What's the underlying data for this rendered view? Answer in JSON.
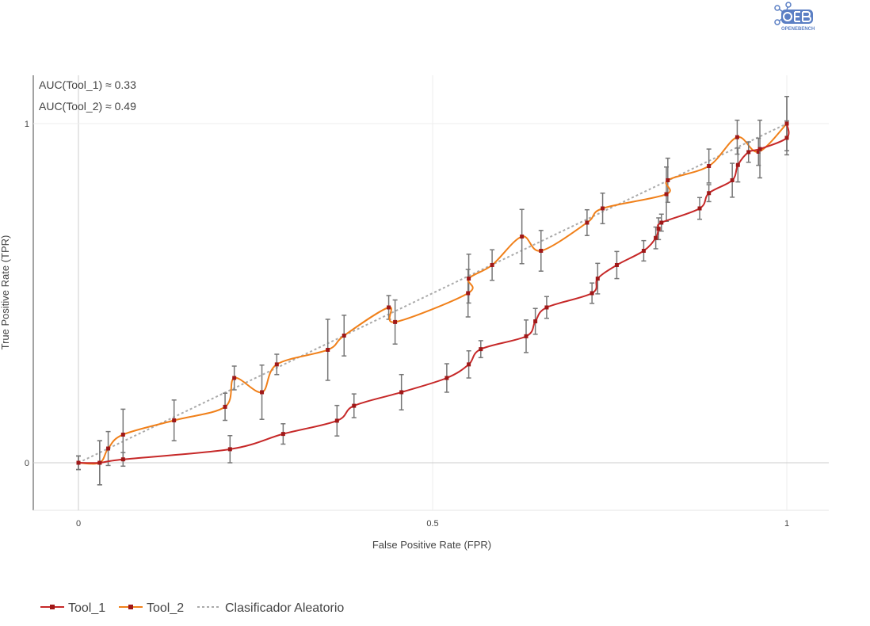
{
  "logo": {
    "label": "OPENEBENCH"
  },
  "chart_data": {
    "type": "line",
    "xlabel": "False Positive Rate (FPR)",
    "ylabel": "True Positive Rate (TPR)",
    "xlim": [
      -0.065,
      1.06
    ],
    "ylim": [
      -0.14,
      1.14
    ],
    "xticks": [
      {
        "v": 0,
        "label": "0"
      },
      {
        "v": 0.5,
        "label": "0.5"
      },
      {
        "v": 1,
        "label": "1"
      }
    ],
    "yticks": [
      {
        "v": 0,
        "label": "0"
      },
      {
        "v": 1,
        "label": "1"
      }
    ],
    "grid": true,
    "legend_position": "bottom",
    "annotations": [
      "AUC(Tool_1) ≈ 0.33",
      "AUC(Tool_2) ≈ 0.49"
    ],
    "series": [
      {
        "name": "Tool_1",
        "color": "#c62828",
        "x": [
          0,
          0.03,
          0.063,
          0.214,
          0.289,
          0.365,
          0.389,
          0.456,
          0.52,
          0.551,
          0.568,
          0.632,
          0.645,
          0.661,
          0.725,
          0.733,
          0.76,
          0.798,
          0.815,
          0.819,
          0.823,
          0.877,
          0.89,
          0.923,
          0.931,
          0.946,
          0.962,
          1,
          1
        ],
        "y": [
          0,
          0,
          0.01,
          0.04,
          0.085,
          0.124,
          0.168,
          0.208,
          0.25,
          0.29,
          0.335,
          0.373,
          0.417,
          0.458,
          0.5,
          0.543,
          0.583,
          0.625,
          0.663,
          0.69,
          0.708,
          0.75,
          0.795,
          0.833,
          0.878,
          0.916,
          0.925,
          0.958,
          1
        ],
        "err": [
          0.02,
          0.065,
          0.02,
          0.04,
          0.03,
          0.045,
          0.035,
          0.052,
          0.042,
          0.04,
          0.025,
          0.048,
          0.038,
          0.032,
          0.03,
          0.045,
          0.04,
          0.03,
          0.032,
          0.032,
          0.025,
          0.032,
          0.025,
          0.05,
          0.05,
          0.03,
          0.085,
          0.05,
          0.08
        ]
      },
      {
        "name": "Tool_2",
        "color": "#f0801a",
        "x": [
          0,
          0.03,
          0.042,
          0.063,
          0.135,
          0.207,
          0.22,
          0.259,
          0.28,
          0.352,
          0.375,
          0.438,
          0.447,
          0.55,
          0.551,
          0.584,
          0.626,
          0.653,
          0.718,
          0.74,
          0.83,
          0.832,
          0.89,
          0.93,
          0.96,
          1
        ],
        "y": [
          0,
          0,
          0.042,
          0.083,
          0.125,
          0.165,
          0.25,
          0.208,
          0.29,
          0.333,
          0.375,
          0.458,
          0.415,
          0.5,
          0.543,
          0.583,
          0.667,
          0.625,
          0.708,
          0.75,
          0.792,
          0.833,
          0.875,
          0.96,
          0.917,
          1
        ],
        "err": [
          0.02,
          0.065,
          0.05,
          0.075,
          0.06,
          0.04,
          0.035,
          0.08,
          0.03,
          0.09,
          0.06,
          0.035,
          0.065,
          0.07,
          0.072,
          0.045,
          0.08,
          0.06,
          0.038,
          0.045,
          0.08,
          0.065,
          0.05,
          0.05,
          0.04,
          0.08
        ]
      },
      {
        "name": "Clasificador Aleatorio",
        "color": "#aaaaaa",
        "x": [
          0,
          1
        ],
        "y": [
          0,
          1
        ]
      }
    ]
  }
}
